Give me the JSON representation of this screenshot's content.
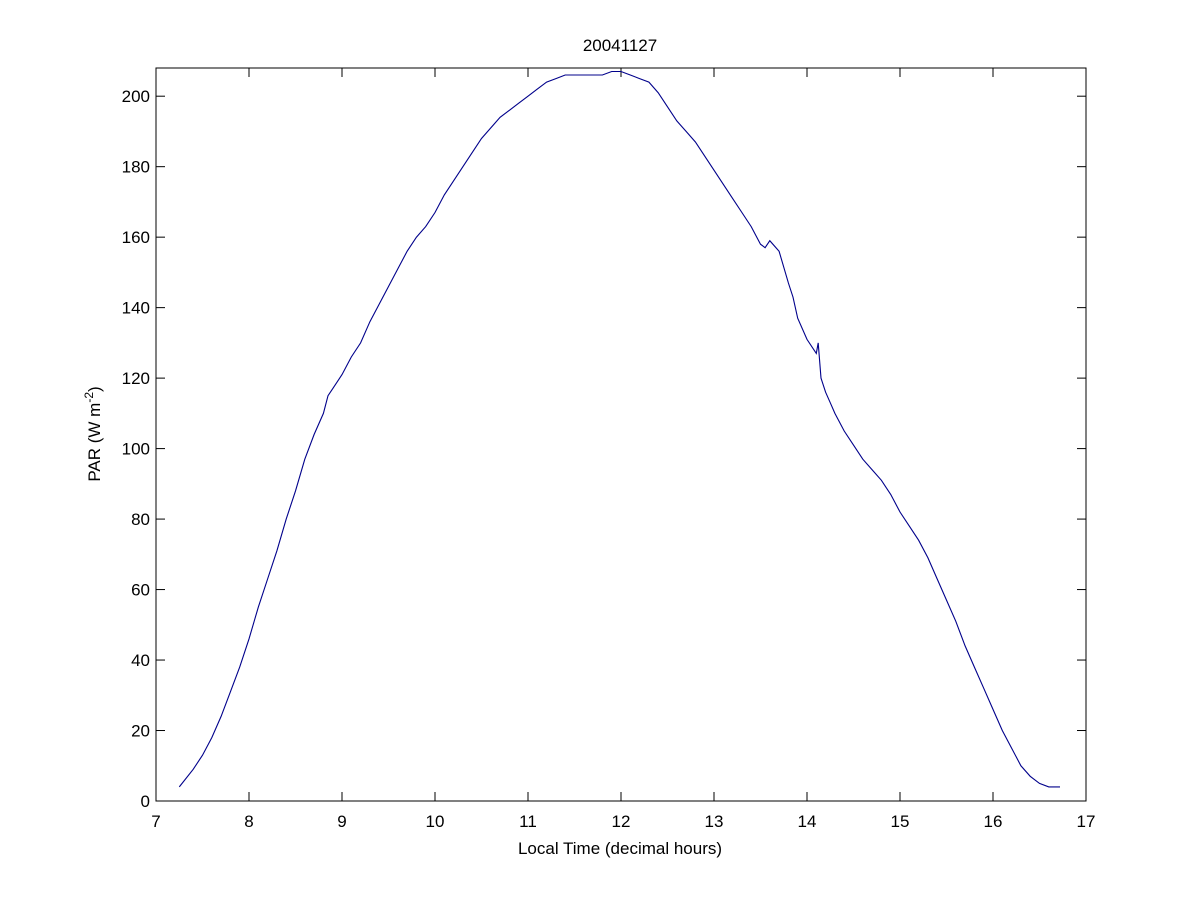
{
  "chart_data": {
    "type": "line",
    "title": "20041127",
    "xlabel": "Local Time (decimal hours)",
    "ylabel": {
      "base": "PAR (W m",
      "sup": "-2",
      "end": ")"
    },
    "xlim": [
      7,
      17
    ],
    "ylim": [
      0,
      208
    ],
    "xticks": [
      7,
      8,
      9,
      10,
      11,
      12,
      13,
      14,
      15,
      16,
      17
    ],
    "yticks": [
      0,
      20,
      40,
      60,
      80,
      100,
      120,
      140,
      160,
      180,
      200
    ],
    "grid": false,
    "line_color": "#00008b",
    "series": [
      {
        "x": [
          7.25,
          7.4,
          7.5,
          7.6,
          7.7,
          7.8,
          7.9,
          8.0,
          8.1,
          8.2,
          8.3,
          8.4,
          8.5,
          8.6,
          8.7,
          8.8,
          8.85,
          8.9,
          9.0,
          9.1,
          9.2,
          9.3,
          9.4,
          9.5,
          9.6,
          9.7,
          9.8,
          9.9,
          10.0,
          10.1,
          10.2,
          10.3,
          10.4,
          10.5,
          10.6,
          10.7,
          10.8,
          10.9,
          11.0,
          11.1,
          11.2,
          11.3,
          11.4,
          11.5,
          11.6,
          11.7,
          11.8,
          11.9,
          12.0,
          12.1,
          12.2,
          12.3,
          12.4,
          12.5,
          12.6,
          12.7,
          12.8,
          12.9,
          13.0,
          13.1,
          13.2,
          13.3,
          13.4,
          13.5,
          13.55,
          13.6,
          13.7,
          13.8,
          13.85,
          13.9,
          14.0,
          14.1,
          14.12,
          14.15,
          14.2,
          14.25,
          14.3,
          14.4,
          14.5,
          14.6,
          14.7,
          14.8,
          14.9,
          15.0,
          15.1,
          15.2,
          15.3,
          15.4,
          15.5,
          15.6,
          15.7,
          15.8,
          15.9,
          16.0,
          16.1,
          16.2,
          16.3,
          16.4,
          16.5,
          16.6,
          16.72
        ],
        "y": [
          4,
          9,
          13,
          18,
          24,
          31,
          38,
          46,
          55,
          63,
          71,
          80,
          88,
          97,
          104,
          110,
          115,
          117,
          121,
          126,
          130,
          136,
          141,
          146,
          151,
          156,
          160,
          163,
          167,
          172,
          176,
          180,
          184,
          188,
          191,
          194,
          196,
          198,
          200,
          202,
          204,
          205,
          206,
          206,
          206,
          206,
          206,
          207,
          207,
          206,
          205,
          204,
          201,
          197,
          193,
          190,
          187,
          183,
          179,
          175,
          171,
          167,
          163,
          158,
          157,
          159,
          156,
          147,
          143,
          137,
          131,
          127,
          130,
          120,
          116,
          113,
          110,
          105,
          101,
          97,
          94,
          91,
          87,
          82,
          78,
          74,
          69,
          63,
          57,
          51,
          44,
          38,
          32,
          26,
          20,
          15,
          10,
          7,
          5,
          4,
          4
        ]
      }
    ]
  }
}
